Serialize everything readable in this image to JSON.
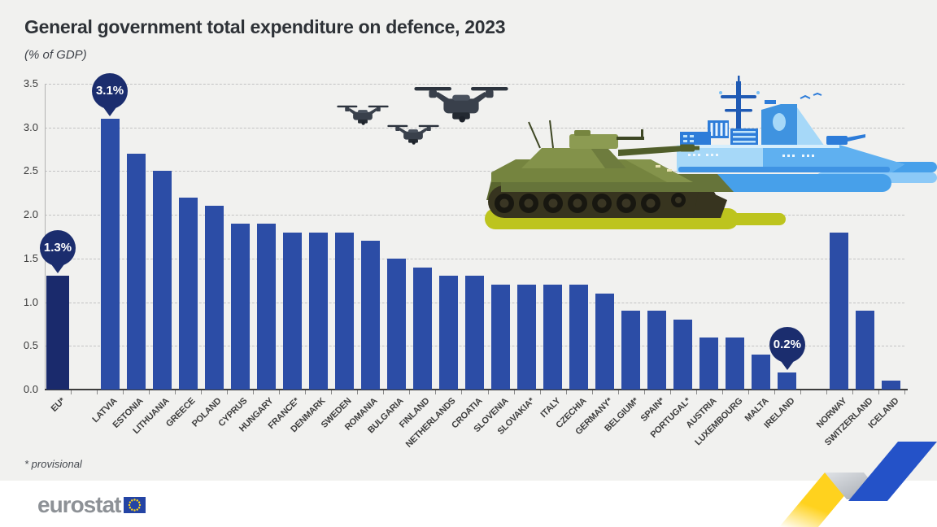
{
  "header": {
    "title": "General government total expenditure on defence, 2023",
    "subtitle": "(% of GDP)"
  },
  "footnote": "* provisional",
  "footer": {
    "logo_text": "eurostat"
  },
  "illustrations": [
    "drone-icon",
    "drone-icon",
    "drone-icon",
    "tank-icon",
    "warship-icon",
    "zigzag-arrow-decoration"
  ],
  "colors": {
    "bar": "#2c4da6",
    "bar_dark": "#1a2a6c",
    "callout": "#1b2d6e",
    "background": "#f1f1ef",
    "footer_band": "#ffffff",
    "zigzag_yellow": "#ffd21e",
    "zigzag_blue": "#2452c8",
    "eu_flag_blue": "#2444a4",
    "eu_flag_stars": "#ffd617"
  },
  "chart_data": {
    "type": "bar",
    "title": "General government total expenditure on defence, 2023",
    "ylabel": "(% of GDP)",
    "ylim": [
      0,
      3.5
    ],
    "ytick_step": 0.5,
    "yticks": [
      "0.0",
      "0.5",
      "1.0",
      "1.5",
      "2.0",
      "2.5",
      "3.0",
      "3.5"
    ],
    "grid": "horizontal-dashed",
    "legend": "none",
    "groups": [
      {
        "name": "eu-aggregate",
        "bars": [
          {
            "label": "EU*",
            "value": 1.3,
            "callout": "1.3%",
            "variant": "dark"
          }
        ]
      },
      {
        "name": "eu-members",
        "bars": [
          {
            "label": "LATVIA",
            "value": 3.1,
            "callout": "3.1%"
          },
          {
            "label": "ESTONIA",
            "value": 2.7
          },
          {
            "label": "LITHUANIA",
            "value": 2.5
          },
          {
            "label": "GREECE",
            "value": 2.2
          },
          {
            "label": "POLAND",
            "value": 2.1
          },
          {
            "label": "CYPRUS",
            "value": 1.9
          },
          {
            "label": "HUNGARY",
            "value": 1.9
          },
          {
            "label": "FRANCE*",
            "value": 1.8
          },
          {
            "label": "DENMARK",
            "value": 1.8
          },
          {
            "label": "SWEDEN",
            "value": 1.8
          },
          {
            "label": "ROMANIA",
            "value": 1.7
          },
          {
            "label": "BULGARIA",
            "value": 1.5
          },
          {
            "label": "FINLAND",
            "value": 1.4
          },
          {
            "label": "NETHERLANDS",
            "value": 1.3
          },
          {
            "label": "CROATIA",
            "value": 1.3
          },
          {
            "label": "SLOVENIA",
            "value": 1.2
          },
          {
            "label": "SLOVAKIA*",
            "value": 1.2
          },
          {
            "label": "ITALY",
            "value": 1.2
          },
          {
            "label": "CZECHIA",
            "value": 1.2
          },
          {
            "label": "GERMANY*",
            "value": 1.1
          },
          {
            "label": "BELGIUM*",
            "value": 0.9
          },
          {
            "label": "SPAIN*",
            "value": 0.9
          },
          {
            "label": "PORTUGAL*",
            "value": 0.8
          },
          {
            "label": "AUSTRIA",
            "value": 0.6
          },
          {
            "label": "LUXEMBOURG",
            "value": 0.6
          },
          {
            "label": "MALTA",
            "value": 0.4
          },
          {
            "label": "IRELAND",
            "value": 0.2,
            "callout": "0.2%"
          }
        ]
      },
      {
        "name": "non-eu",
        "bars": [
          {
            "label": "NORWAY",
            "value": 1.8
          },
          {
            "label": "SWITZERLAND",
            "value": 0.9
          },
          {
            "label": "ICELAND",
            "value": 0.1
          }
        ]
      }
    ]
  }
}
